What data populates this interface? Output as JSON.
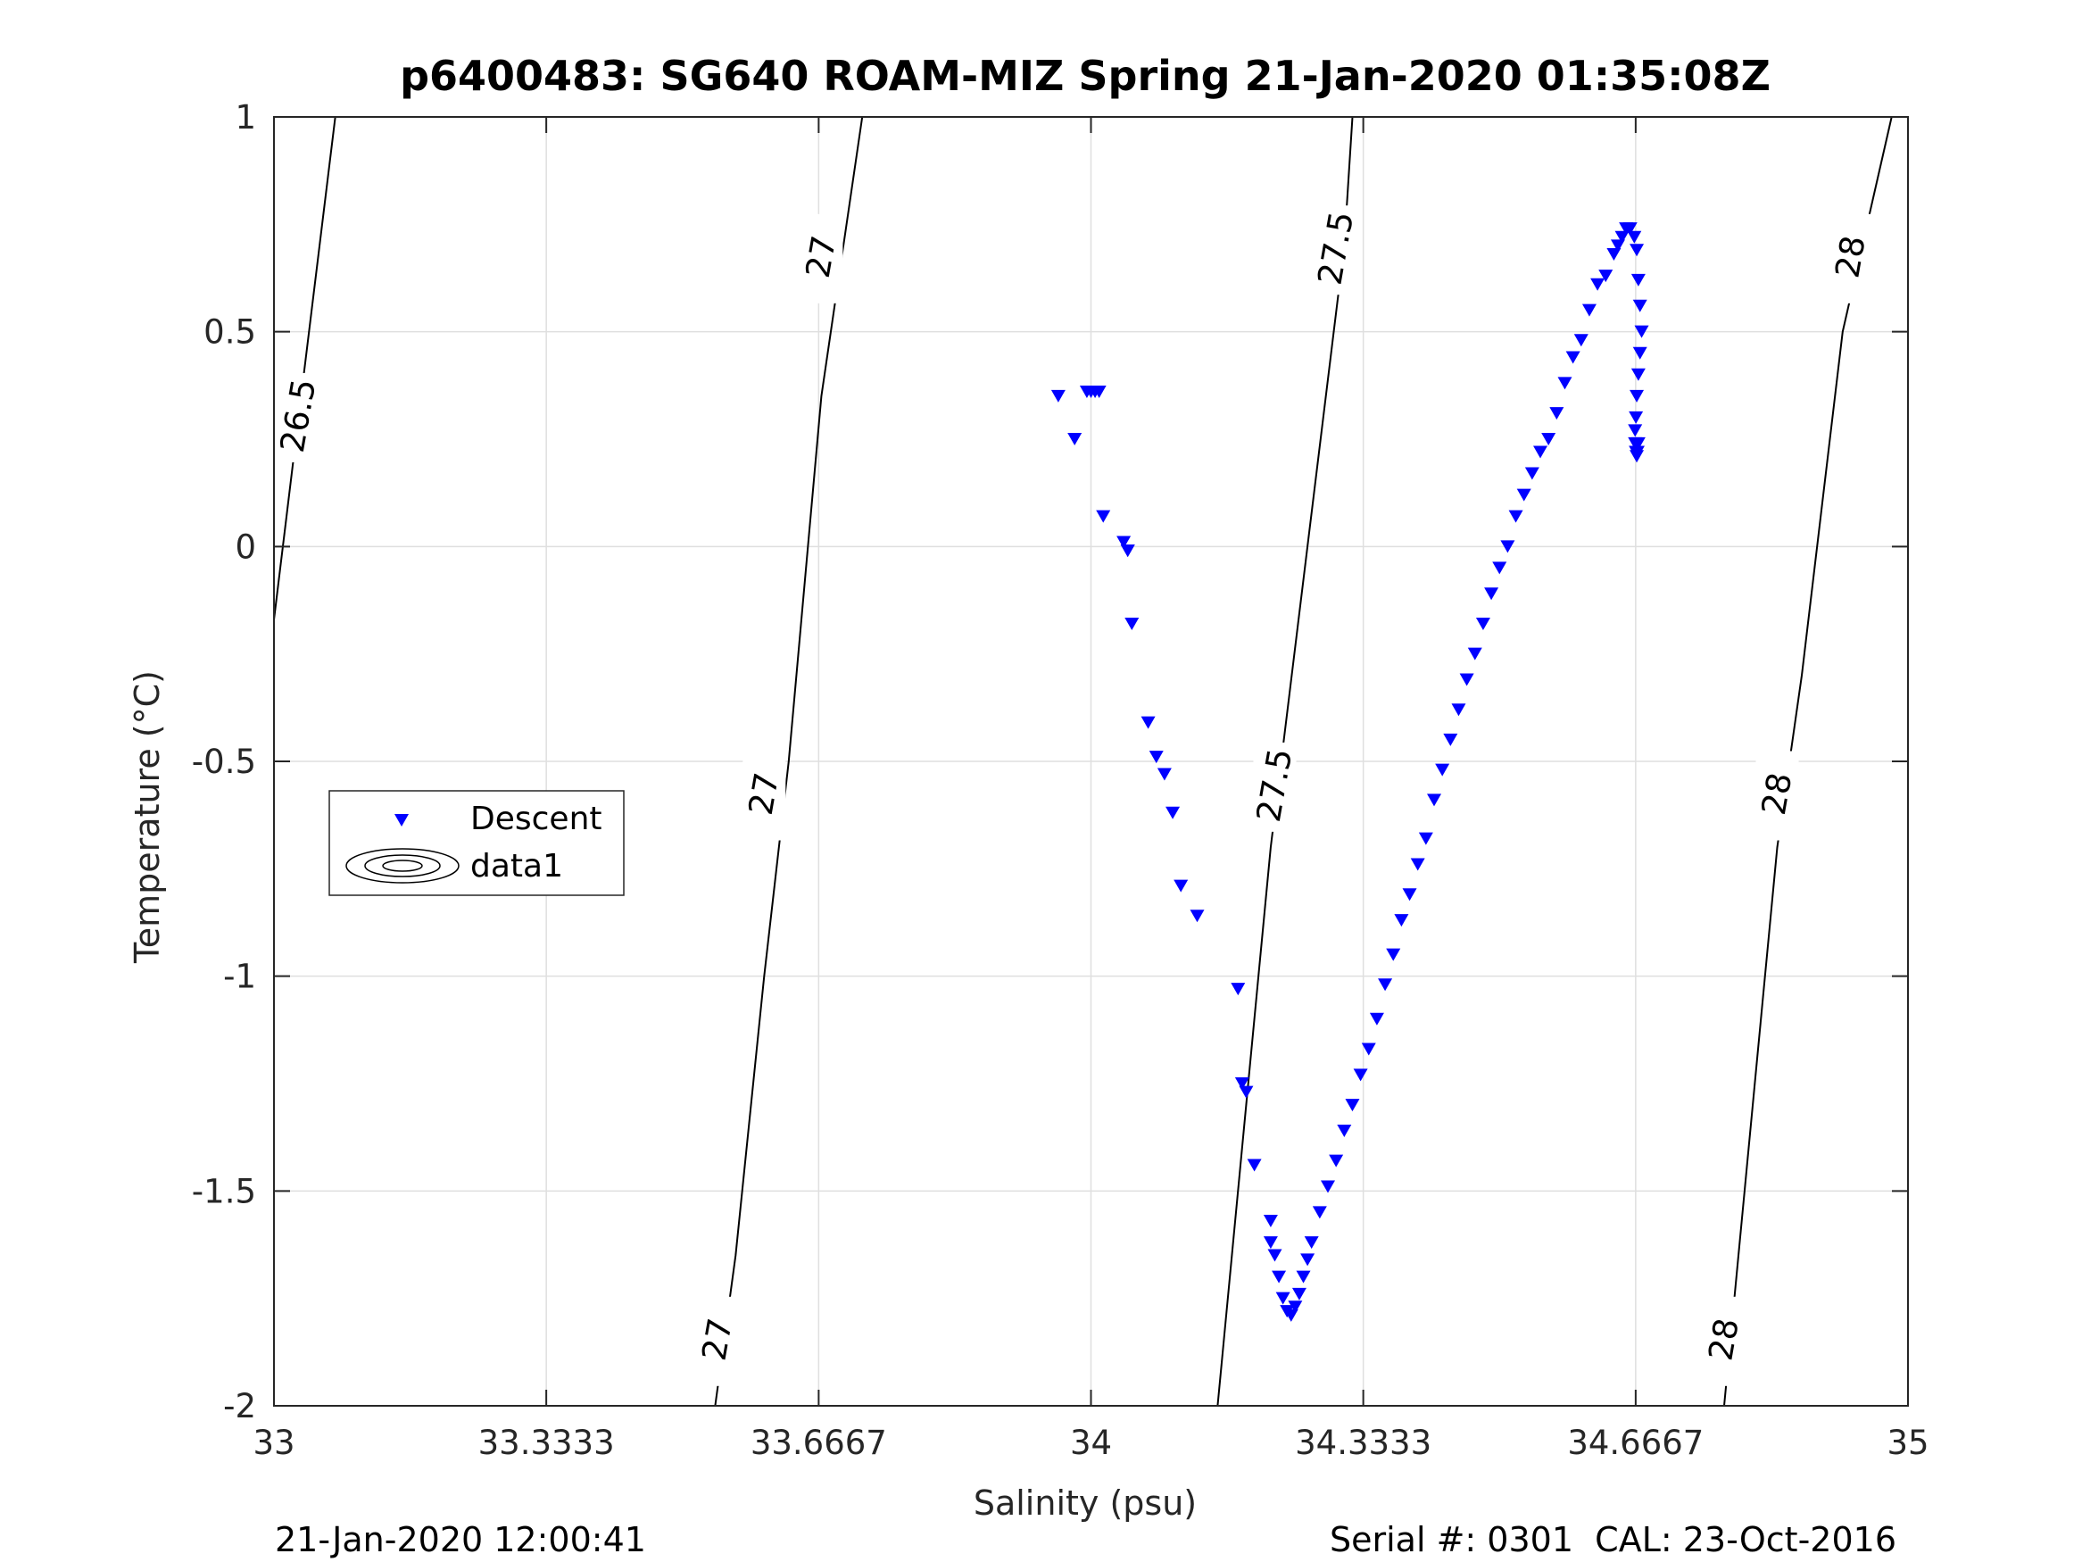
{
  "chart_data": {
    "type": "scatter",
    "title": "p6400483: SG640 ROAM-MIZ Spring 21-Jan-2020 01:35:08Z",
    "xlabel": "Salinity (psu)",
    "ylabel": "Temperature (°C)",
    "xlim": [
      33,
      35
    ],
    "ylim": [
      -2,
      1
    ],
    "x_ticks": [
      33,
      33.3333,
      33.6667,
      34,
      34.3333,
      34.6667,
      35
    ],
    "x_tick_labels": [
      "33",
      "33.3333",
      "33.6667",
      "34",
      "34.3333",
      "34.6667",
      "35"
    ],
    "y_ticks": [
      -2,
      -1.5,
      -1,
      -0.5,
      0,
      0.5,
      1
    ],
    "y_tick_labels": [
      "-2",
      "-1.5",
      "-1",
      "-0.5",
      "0",
      "0.5",
      "1"
    ],
    "grid": true,
    "legend": {
      "placement": "left-middle",
      "entries": [
        "Descent",
        "data1"
      ]
    },
    "series": [
      {
        "name": "Descent",
        "marker": "triangle-down",
        "color": "#0000ff",
        "x": [
          33.96,
          33.98,
          33.995,
          34.0,
          34.005,
          34.01,
          34.015,
          34.04,
          34.045,
          34.045,
          34.05,
          34.07,
          34.08,
          34.09,
          34.1,
          34.11,
          34.13,
          34.18,
          34.185,
          34.19,
          34.2,
          34.22,
          34.22,
          34.225,
          34.23,
          34.235,
          34.24,
          34.245,
          34.25,
          34.255,
          34.26,
          34.265,
          34.27,
          34.28,
          34.29,
          34.3,
          34.31,
          34.32,
          34.33,
          34.34,
          34.35,
          34.36,
          34.37,
          34.38,
          34.39,
          34.4,
          34.41,
          34.42,
          34.43,
          34.44,
          34.45,
          34.46,
          34.47,
          34.48,
          34.49,
          34.5,
          34.51,
          34.52,
          34.53,
          34.54,
          34.55,
          34.56,
          34.57,
          34.58,
          34.59,
          34.6,
          34.61,
          34.62,
          34.63,
          34.64,
          34.645,
          34.65,
          34.655,
          34.66,
          34.665,
          34.668,
          34.67,
          34.672,
          34.674,
          34.672,
          34.67,
          34.668,
          34.667,
          34.666,
          34.666,
          34.667,
          34.668,
          34.669,
          34.67
        ],
        "y": [
          0.35,
          0.25,
          0.36,
          0.36,
          0.36,
          0.36,
          0.07,
          0.01,
          -0.01,
          -0.01,
          -0.18,
          -0.41,
          -0.49,
          -0.53,
          -0.62,
          -0.79,
          -0.86,
          -1.03,
          -1.25,
          -1.27,
          -1.44,
          -1.57,
          -1.62,
          -1.65,
          -1.7,
          -1.75,
          -1.78,
          -1.79,
          -1.77,
          -1.74,
          -1.7,
          -1.66,
          -1.62,
          -1.55,
          -1.49,
          -1.43,
          -1.36,
          -1.3,
          -1.23,
          -1.17,
          -1.1,
          -1.02,
          -0.95,
          -0.87,
          -0.81,
          -0.74,
          -0.68,
          -0.59,
          -0.52,
          -0.45,
          -0.38,
          -0.31,
          -0.25,
          -0.18,
          -0.11,
          -0.05,
          0.0,
          0.07,
          0.12,
          0.17,
          0.22,
          0.25,
          0.31,
          0.38,
          0.44,
          0.48,
          0.55,
          0.61,
          0.63,
          0.68,
          0.7,
          0.72,
          0.74,
          0.74,
          0.72,
          0.69,
          0.62,
          0.56,
          0.5,
          0.45,
          0.4,
          0.35,
          0.3,
          0.27,
          0.24,
          0.22,
          0.21,
          0.22,
          0.24
        ]
      }
    ],
    "contours": [
      {
        "level": "26.5",
        "points": [
          [
            33.0,
            -0.17
          ],
          [
            33.03,
            0.3
          ],
          [
            33.075,
            1.0
          ]
        ],
        "labels": [
          {
            "at": [
              33.03,
              0.3
            ]
          }
        ]
      },
      {
        "level": "27",
        "points": [
          [
            33.54,
            -2.0
          ],
          [
            33.565,
            -1.65
          ],
          [
            33.6,
            -1.0
          ],
          [
            33.63,
            -0.5
          ],
          [
            33.67,
            0.35
          ],
          [
            33.72,
            1.0
          ]
        ],
        "labels": [
          {
            "at": [
              33.543,
              -1.85
            ]
          },
          {
            "at": [
              33.6,
              -0.58
            ]
          },
          {
            "at": [
              33.67,
              0.67
            ]
          }
        ]
      },
      {
        "level": "27.5",
        "points": [
          [
            34.155,
            -2.0
          ],
          [
            34.19,
            -1.3
          ],
          [
            34.22,
            -0.7
          ],
          [
            34.265,
            0.0
          ],
          [
            34.31,
            0.7
          ],
          [
            34.32,
            1.0
          ]
        ],
        "labels": [
          {
            "at": [
              34.225,
              -0.56
            ]
          },
          {
            "at": [
              34.3,
              0.69
            ]
          }
        ]
      },
      {
        "level": "28",
        "points": [
          [
            34.775,
            -2.0
          ],
          [
            34.8,
            -1.5
          ],
          [
            34.84,
            -0.7
          ],
          [
            34.87,
            -0.3
          ],
          [
            34.92,
            0.5
          ],
          [
            34.98,
            1.0
          ]
        ],
        "labels": [
          {
            "at": [
              34.775,
              -1.85
            ]
          },
          {
            "at": [
              34.84,
              -0.58
            ]
          },
          {
            "at": [
              34.93,
              0.67
            ]
          }
        ]
      }
    ]
  },
  "footer": {
    "date": "21-Jan-2020 12:00:41",
    "serial": "Serial #: 0301  CAL: 23-Oct-2016"
  },
  "colors": {
    "series": "#0000ff",
    "grid": "#dfdfdf",
    "axis": "#262626"
  }
}
